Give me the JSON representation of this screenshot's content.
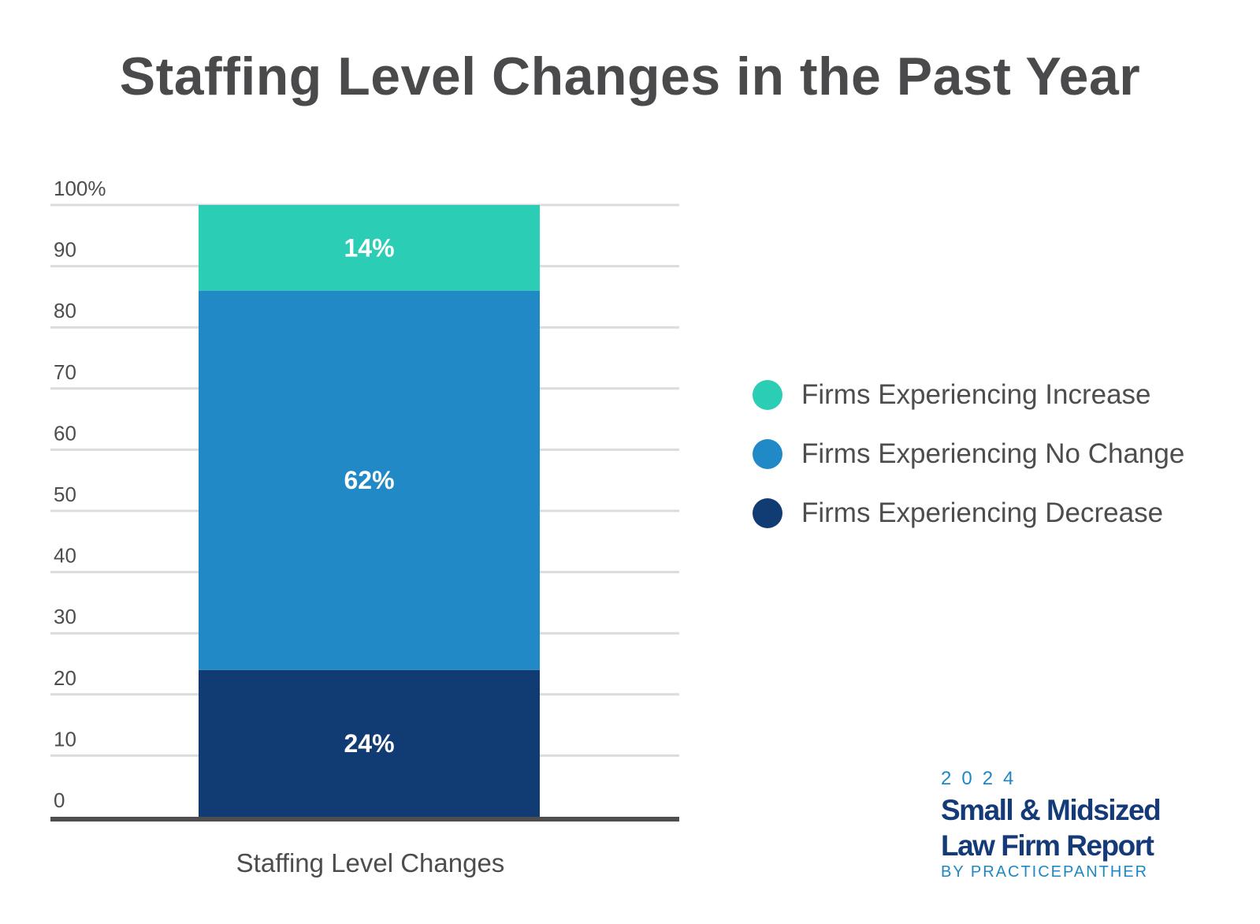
{
  "chart_data": {
    "type": "bar",
    "stacked": true,
    "title": "Staffing Level Changes in the Past Year",
    "xlabel": "Staffing Level Changes",
    "ylabel": "",
    "categories": [
      "Staffing Level Changes"
    ],
    "ylim": [
      0,
      100
    ],
    "yticks": [
      0,
      10,
      20,
      30,
      40,
      50,
      60,
      70,
      80,
      90,
      100
    ],
    "ytick_labels": [
      "0",
      "10",
      "20",
      "30",
      "40",
      "50",
      "60",
      "70",
      "80",
      "90",
      "100%"
    ],
    "grid": true,
    "legend_position": "right",
    "series": [
      {
        "name": "Firms Experiencing Decrease",
        "values": [
          24
        ],
        "label": "24%",
        "color": "#113b73"
      },
      {
        "name": "Firms Experiencing No Change",
        "values": [
          62
        ],
        "label": "62%",
        "color": "#2189c5"
      },
      {
        "name": "Firms Experiencing Increase",
        "values": [
          14
        ],
        "label": "14%",
        "color": "#2bcdb5"
      }
    ],
    "legend_order": [
      "Firms Experiencing Increase",
      "Firms Experiencing No Change",
      "Firms Experiencing Decrease"
    ]
  },
  "branding": {
    "year": "2024",
    "title_line1": "Small & Midsized",
    "title_line2": "Law Firm Report",
    "byline": "BY PRACTICEPANTHER"
  }
}
